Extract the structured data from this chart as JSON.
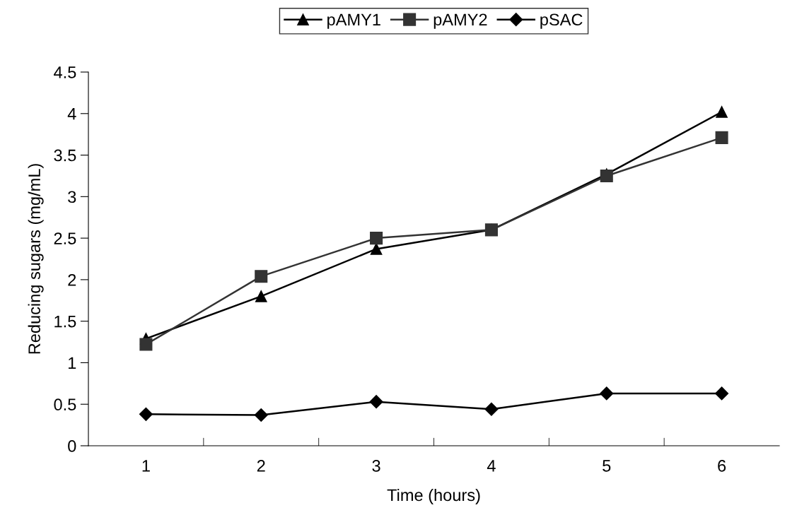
{
  "chart_data": {
    "type": "line",
    "xlabel": "Time (hours)",
    "ylabel": "Reducing sugars (mg/mL)",
    "categories": [
      "1",
      "2",
      "3",
      "4",
      "5",
      "6"
    ],
    "series": [
      {
        "name": "pAMY1",
        "color": "#000000",
        "marker": "triangle",
        "values": [
          1.29,
          1.8,
          2.37,
          2.6,
          3.27,
          4.02
        ]
      },
      {
        "name": "pAMY2",
        "color": "#333333",
        "marker": "square",
        "values": [
          1.22,
          2.04,
          2.5,
          2.6,
          3.25,
          3.71
        ]
      },
      {
        "name": "pSAC",
        "color": "#000000",
        "marker": "diamond",
        "values": [
          0.38,
          0.37,
          0.53,
          0.44,
          0.63,
          0.63
        ]
      }
    ],
    "ylim": [
      0,
      4.5
    ],
    "yticks": [
      0,
      0.5,
      1,
      1.5,
      2,
      2.5,
      3,
      3.5,
      4,
      4.5
    ],
    "grid": false,
    "legend": "top",
    "line_style": "solid"
  }
}
